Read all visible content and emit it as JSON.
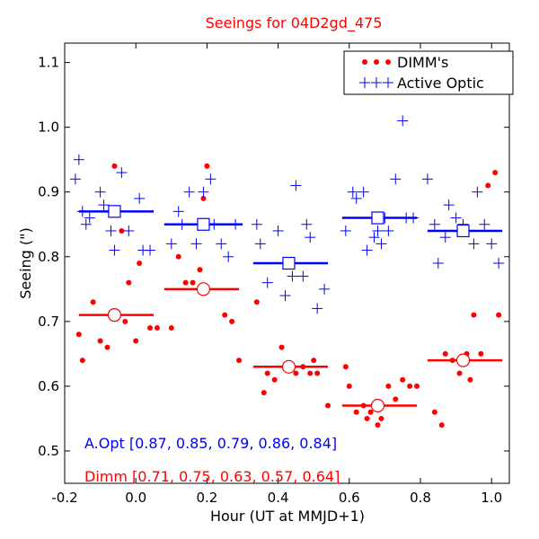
{
  "chart_data": {
    "type": "scatter",
    "title": "Seeings for 04D2gd_475",
    "xlabel": "Hour (UT at MMJD+1)",
    "ylabel": "Seeing (\")",
    "xlim": [
      -0.2,
      1.05
    ],
    "ylim": [
      0.45,
      1.13
    ],
    "xticks": [
      -0.2,
      0.0,
      0.2,
      0.4,
      0.6,
      0.8,
      1.0
    ],
    "xtick_labels": [
      "-0.2",
      "0.0",
      "0.2",
      "0.4",
      "0.6",
      "0.8",
      "1.0"
    ],
    "yticks": [
      0.5,
      0.6,
      0.7,
      0.8,
      0.9,
      1.0,
      1.1
    ],
    "ytick_labels": [
      "0.5",
      "0.6",
      "0.7",
      "0.8",
      "0.9",
      "1.0",
      "1.1"
    ],
    "legend": {
      "position": "top-right",
      "entries": [
        {
          "label": "DIMM's",
          "marker": "dot",
          "color": "#ff0000"
        },
        {
          "label": "Active Optic",
          "marker": "plus",
          "color": "#0000ff"
        }
      ]
    },
    "annotations": {
      "aopt": "A.Opt [0.87, 0.85, 0.79, 0.86, 0.84]",
      "dimm": "Dimm [0.71, 0.75, 0.63, 0.57, 0.64]"
    },
    "colors": {
      "dimm": "#ff0000",
      "aopt": "#0000ff"
    },
    "series": [
      {
        "name": "DIMM's",
        "marker": "dot",
        "color": "#ff0000",
        "points": [
          [
            -0.16,
            0.68
          ],
          [
            -0.15,
            0.64
          ],
          [
            -0.12,
            0.73
          ],
          [
            -0.1,
            0.67
          ],
          [
            -0.08,
            0.66
          ],
          [
            -0.06,
            0.94
          ],
          [
            -0.04,
            0.84
          ],
          [
            -0.03,
            0.7
          ],
          [
            -0.02,
            0.76
          ],
          [
            0.0,
            0.67
          ],
          [
            0.01,
            0.79
          ],
          [
            0.04,
            0.69
          ],
          [
            0.06,
            0.69
          ],
          [
            0.1,
            0.69
          ],
          [
            0.12,
            0.8
          ],
          [
            0.14,
            0.76
          ],
          [
            0.16,
            0.76
          ],
          [
            0.18,
            0.78
          ],
          [
            0.19,
            0.89
          ],
          [
            0.2,
            0.94
          ],
          [
            0.25,
            0.71
          ],
          [
            0.27,
            0.7
          ],
          [
            0.29,
            0.64
          ],
          [
            0.34,
            0.73
          ],
          [
            0.36,
            0.59
          ],
          [
            0.37,
            0.62
          ],
          [
            0.39,
            0.61
          ],
          [
            0.41,
            0.66
          ],
          [
            0.43,
            0.63
          ],
          [
            0.45,
            0.62
          ],
          [
            0.47,
            0.63
          ],
          [
            0.49,
            0.62
          ],
          [
            0.5,
            0.64
          ],
          [
            0.51,
            0.62
          ],
          [
            0.54,
            0.57
          ],
          [
            0.59,
            0.63
          ],
          [
            0.6,
            0.6
          ],
          [
            0.62,
            0.56
          ],
          [
            0.64,
            0.57
          ],
          [
            0.65,
            0.55
          ],
          [
            0.66,
            0.56
          ],
          [
            0.68,
            0.54
          ],
          [
            0.69,
            0.55
          ],
          [
            0.71,
            0.6
          ],
          [
            0.73,
            0.58
          ],
          [
            0.75,
            0.61
          ],
          [
            0.77,
            0.6
          ],
          [
            0.79,
            0.6
          ],
          [
            0.84,
            0.56
          ],
          [
            0.86,
            0.54
          ],
          [
            0.87,
            0.65
          ],
          [
            0.89,
            0.64
          ],
          [
            0.91,
            0.62
          ],
          [
            0.93,
            0.65
          ],
          [
            0.94,
            0.61
          ],
          [
            0.95,
            0.71
          ],
          [
            0.97,
            0.65
          ],
          [
            0.99,
            0.91
          ],
          [
            1.01,
            0.93
          ],
          [
            1.02,
            0.71
          ]
        ]
      },
      {
        "name": "Active Optic",
        "marker": "plus",
        "color": "#0000ff",
        "points": [
          [
            -0.17,
            0.92
          ],
          [
            -0.16,
            0.95
          ],
          [
            -0.15,
            0.87
          ],
          [
            -0.14,
            0.85
          ],
          [
            -0.13,
            0.86
          ],
          [
            -0.1,
            0.9
          ],
          [
            -0.09,
            0.88
          ],
          [
            -0.07,
            0.84
          ],
          [
            -0.06,
            0.81
          ],
          [
            -0.04,
            0.93
          ],
          [
            -0.02,
            0.84
          ],
          [
            0.01,
            0.89
          ],
          [
            0.02,
            0.81
          ],
          [
            0.04,
            0.81
          ],
          [
            0.1,
            0.82
          ],
          [
            0.12,
            0.87
          ],
          [
            0.13,
            0.85
          ],
          [
            0.15,
            0.9
          ],
          [
            0.17,
            0.82
          ],
          [
            0.19,
            0.9
          ],
          [
            0.21,
            0.92
          ],
          [
            0.22,
            0.85
          ],
          [
            0.24,
            0.82
          ],
          [
            0.26,
            0.8
          ],
          [
            0.28,
            0.85
          ],
          [
            0.34,
            0.85
          ],
          [
            0.35,
            0.82
          ],
          [
            0.37,
            0.76
          ],
          [
            0.4,
            0.84
          ],
          [
            0.42,
            0.74
          ],
          [
            0.44,
            0.77
          ],
          [
            0.45,
            0.91
          ],
          [
            0.47,
            0.77
          ],
          [
            0.48,
            0.85
          ],
          [
            0.49,
            0.83
          ],
          [
            0.51,
            0.72
          ],
          [
            0.53,
            0.75
          ],
          [
            0.59,
            0.84
          ],
          [
            0.61,
            0.9
          ],
          [
            0.62,
            0.89
          ],
          [
            0.64,
            0.9
          ],
          [
            0.65,
            0.81
          ],
          [
            0.67,
            0.83
          ],
          [
            0.68,
            0.84
          ],
          [
            0.69,
            0.82
          ],
          [
            0.7,
            0.86
          ],
          [
            0.71,
            0.84
          ],
          [
            0.73,
            0.92
          ],
          [
            0.75,
            1.01
          ],
          [
            0.76,
            0.86
          ],
          [
            0.78,
            0.86
          ],
          [
            0.82,
            0.92
          ],
          [
            0.84,
            0.85
          ],
          [
            0.85,
            0.79
          ],
          [
            0.87,
            0.83
          ],
          [
            0.88,
            0.88
          ],
          [
            0.9,
            0.86
          ],
          [
            0.92,
            0.85
          ],
          [
            0.95,
            0.82
          ],
          [
            0.96,
            0.9
          ],
          [
            0.98,
            0.85
          ],
          [
            1.0,
            0.82
          ],
          [
            1.02,
            0.79
          ]
        ]
      }
    ],
    "bins": {
      "aopt": [
        {
          "center": -0.06,
          "value": 0.87,
          "range": [
            -0.16,
            0.05
          ]
        },
        {
          "center": 0.19,
          "value": 0.85,
          "range": [
            0.08,
            0.3
          ]
        },
        {
          "center": 0.43,
          "value": 0.79,
          "range": [
            0.33,
            0.54
          ]
        },
        {
          "center": 0.68,
          "value": 0.86,
          "range": [
            0.58,
            0.79
          ]
        },
        {
          "center": 0.92,
          "value": 0.84,
          "range": [
            0.82,
            1.03
          ]
        }
      ],
      "dimm": [
        {
          "center": -0.06,
          "value": 0.71,
          "range": [
            -0.16,
            0.05
          ]
        },
        {
          "center": 0.19,
          "value": 0.75,
          "range": [
            0.08,
            0.29
          ]
        },
        {
          "center": 0.43,
          "value": 0.63,
          "range": [
            0.33,
            0.54
          ]
        },
        {
          "center": 0.68,
          "value": 0.57,
          "range": [
            0.58,
            0.79
          ]
        },
        {
          "center": 0.92,
          "value": 0.64,
          "range": [
            0.82,
            1.03
          ]
        }
      ]
    }
  }
}
